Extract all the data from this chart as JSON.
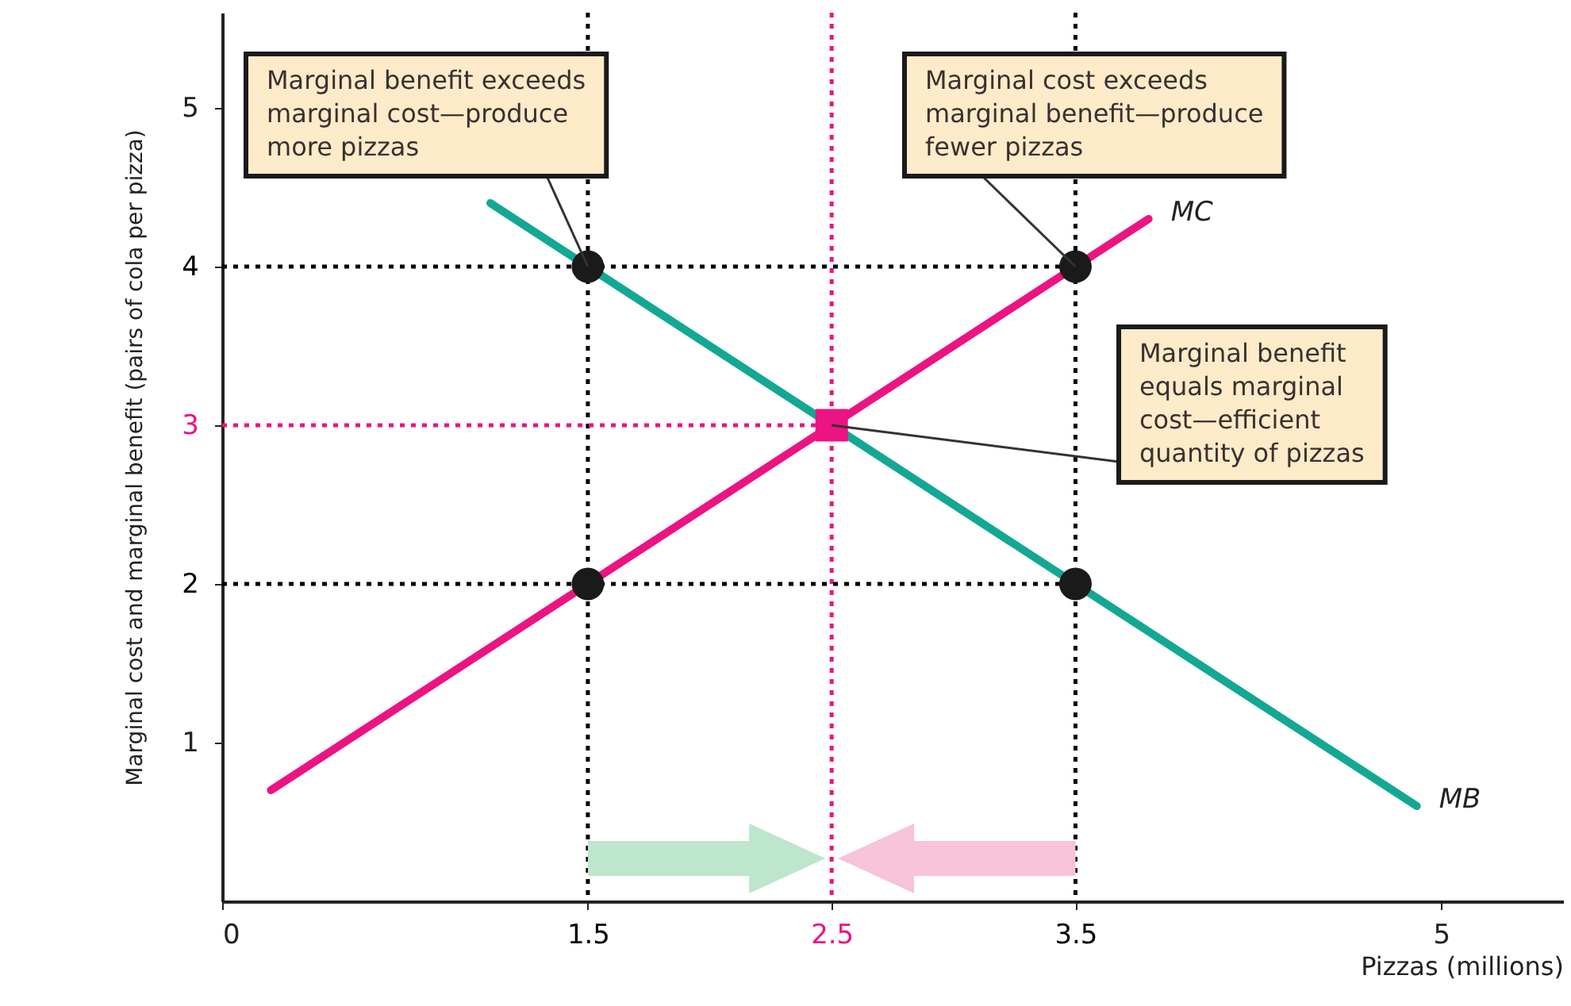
{
  "chart_data": {
    "type": "line",
    "xlabel": "Pizzas (millions)",
    "ylabel": "Marginal cost and marginal benefit (pairs of cola per pizza)",
    "xlim": [
      0,
      5.5
    ],
    "ylim": [
      0,
      5.6
    ],
    "xticks": [
      0,
      1.5,
      2.5,
      3.5,
      5
    ],
    "yticks": [
      1,
      2,
      3,
      4,
      5
    ],
    "series": [
      {
        "color": "#000000",
        "line_style": "dotted",
        "x": [
          0,
          3.5
        ],
        "values": [
          4,
          4
        ]
      },
      {
        "color": "#000000",
        "line_style": "dotted",
        "x": [
          0,
          3.5
        ],
        "values": [
          2,
          2
        ]
      },
      {
        "color": "#ec1382",
        "line_style": "dotted",
        "x": [
          0,
          2.5
        ],
        "values": [
          3,
          3
        ]
      },
      {
        "name": "MC",
        "color": "#ec1382",
        "x": [
          0.2,
          3.8
        ],
        "values": [
          0.7,
          4.3
        ]
      },
      {
        "name": "MB",
        "color": "#12a893",
        "x": [
          1.1,
          4.9
        ],
        "values": [
          4.4,
          0.6
        ]
      },
      {
        "type": "scatter",
        "color": "#1a1a1a",
        "marker": "circle",
        "x": [
          1.5,
          3.5,
          1.5,
          3.5
        ],
        "values": [
          4,
          4,
          2,
          2
        ]
      },
      {
        "type": "scatter",
        "color": "#ec1382",
        "marker": "square",
        "x": [
          2.5
        ],
        "values": [
          3
        ]
      }
    ],
    "ref_lines": [
      {
        "axis": "x",
        "value": 1.5,
        "color": "#000000",
        "line_style": "dotted"
      },
      {
        "axis": "x",
        "value": 2.5,
        "color": "#ec1382",
        "line_style": "dotted"
      },
      {
        "axis": "x",
        "value": 3.5,
        "color": "#000000",
        "line_style": "dotted"
      }
    ],
    "annotations": [
      {
        "text": "Marginal benefit exceeds marginal cost—produce more pizzas",
        "x": 1.5,
        "y": 4
      },
      {
        "text": "Marginal cost exceeds marginal benefit—produce fewer pizzas",
        "x": 3.5,
        "y": 4
      },
      {
        "text": "Marginal benefit equals marginal cost—efficient quantity of pizzas",
        "x": 2.5,
        "y": 3
      }
    ],
    "line_style": "solid"
  }
}
